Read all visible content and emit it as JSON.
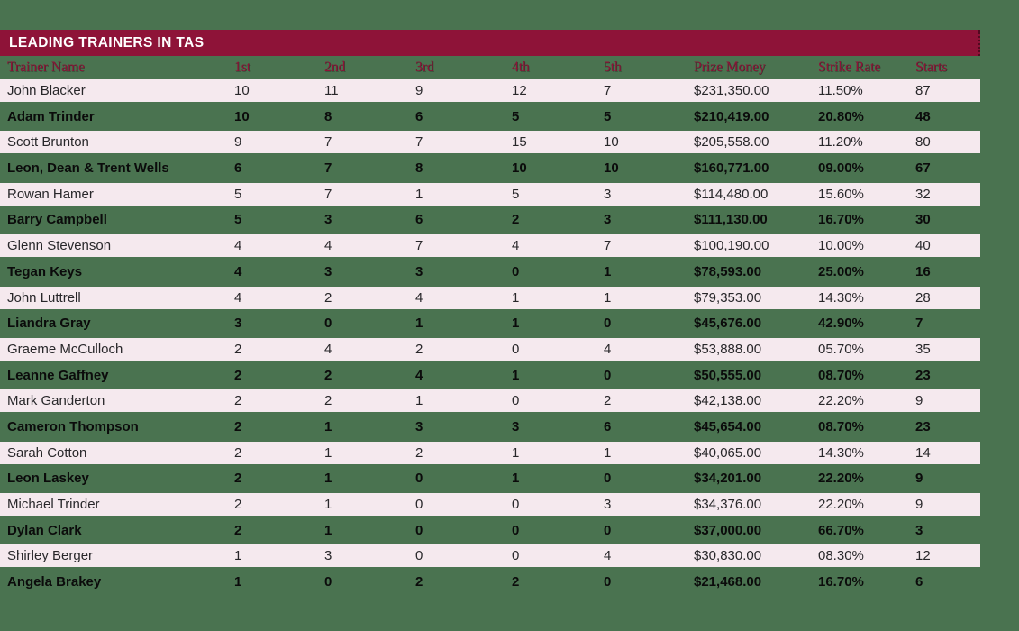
{
  "page": {
    "background_color": "#4A7350"
  },
  "title_bar": {
    "label": "LEADING TRAINERS IN TAS",
    "background_color": "#8E1338",
    "text_color": "#FFFFFF"
  },
  "table": {
    "row_light_background": "#F5E9EE",
    "header_text_color": "#8E1338"
  },
  "chart_data": {
    "type": "table",
    "title": "LEADING TRAINERS IN TAS",
    "columns": [
      "Trainer Name",
      "1st",
      "2nd",
      "3rd",
      "4th",
      "5th",
      "Prize Money",
      "Strike Rate",
      "Starts"
    ],
    "rows": [
      [
        "John Blacker",
        "10",
        "11",
        "9",
        "12",
        "7",
        "$231,350.00",
        "11.50%",
        "87"
      ],
      [
        "Adam Trinder",
        "10",
        "8",
        "6",
        "5",
        "5",
        "$210,419.00",
        "20.80%",
        "48"
      ],
      [
        "Scott Brunton",
        "9",
        "7",
        "7",
        "15",
        "10",
        "$205,558.00",
        "11.20%",
        "80"
      ],
      [
        "Leon, Dean & Trent Wells",
        "6",
        "7",
        "8",
        "10",
        "10",
        "$160,771.00",
        "09.00%",
        "67"
      ],
      [
        "Rowan Hamer",
        "5",
        "7",
        "1",
        "5",
        "3",
        "$114,480.00",
        "15.60%",
        "32"
      ],
      [
        "Barry Campbell",
        "5",
        "3",
        "6",
        "2",
        "3",
        "$111,130.00",
        "16.70%",
        "30"
      ],
      [
        "Glenn Stevenson",
        "4",
        "4",
        "7",
        "4",
        "7",
        "$100,190.00",
        "10.00%",
        "40"
      ],
      [
        "Tegan Keys",
        "4",
        "3",
        "3",
        "0",
        "1",
        "$78,593.00",
        "25.00%",
        "16"
      ],
      [
        "John Luttrell",
        "4",
        "2",
        "4",
        "1",
        "1",
        "$79,353.00",
        "14.30%",
        "28"
      ],
      [
        "Liandra Gray",
        "3",
        "0",
        "1",
        "1",
        "0",
        "$45,676.00",
        "42.90%",
        "7"
      ],
      [
        "Graeme McCulloch",
        "2",
        "4",
        "2",
        "0",
        "4",
        "$53,888.00",
        "05.70%",
        "35"
      ],
      [
        "Leanne Gaffney",
        "2",
        "2",
        "4",
        "1",
        "0",
        "$50,555.00",
        "08.70%",
        "23"
      ],
      [
        "Mark Ganderton",
        "2",
        "2",
        "1",
        "0",
        "2",
        "$42,138.00",
        "22.20%",
        "9"
      ],
      [
        "Cameron Thompson",
        "2",
        "1",
        "3",
        "3",
        "6",
        "$45,654.00",
        "08.70%",
        "23"
      ],
      [
        "Sarah Cotton",
        "2",
        "1",
        "2",
        "1",
        "1",
        "$40,065.00",
        "14.30%",
        "14"
      ],
      [
        "Leon Laskey",
        "2",
        "1",
        "0",
        "1",
        "0",
        "$34,201.00",
        "22.20%",
        "9"
      ],
      [
        "Michael Trinder",
        "2",
        "1",
        "0",
        "0",
        "3",
        "$34,376.00",
        "22.20%",
        "9"
      ],
      [
        "Dylan Clark",
        "2",
        "1",
        "0",
        "0",
        "0",
        "$37,000.00",
        "66.70%",
        "3"
      ],
      [
        "Shirley Berger",
        "1",
        "3",
        "0",
        "0",
        "4",
        "$30,830.00",
        "08.30%",
        "12"
      ],
      [
        "Angela Brakey",
        "1",
        "0",
        "2",
        "2",
        "0",
        "$21,468.00",
        "16.70%",
        "6"
      ]
    ]
  }
}
